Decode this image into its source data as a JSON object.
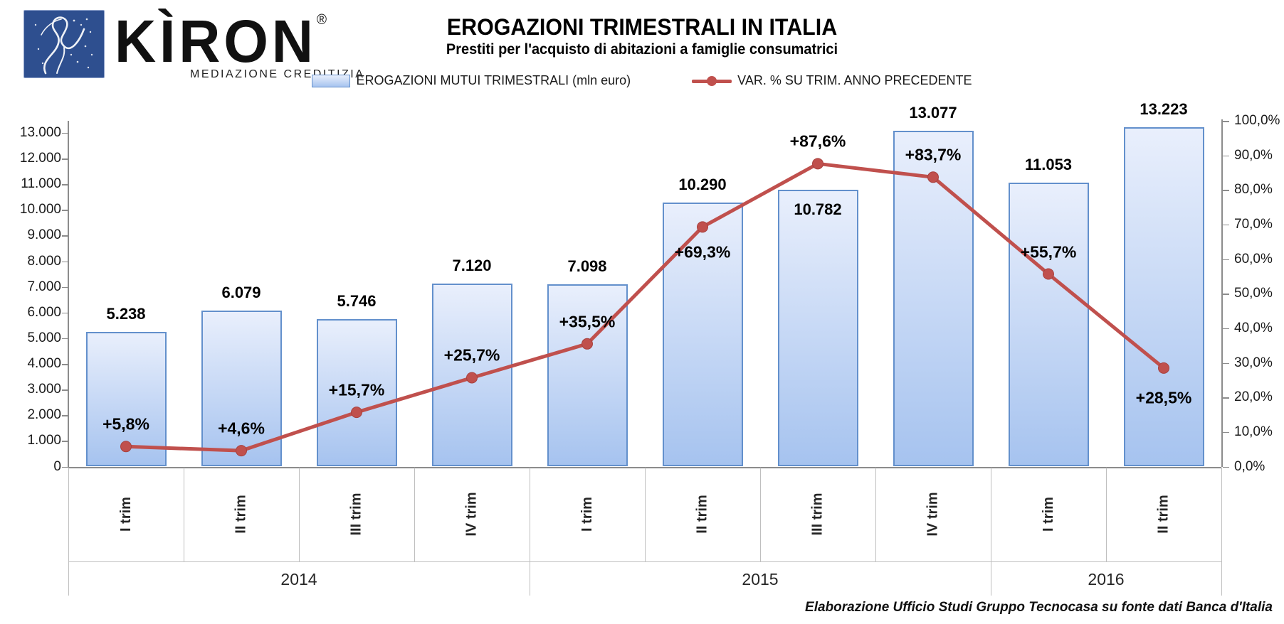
{
  "logo": {
    "name": "KÌRON",
    "registered": "®",
    "tagline": "MEDIAZIONE CREDITIZIA"
  },
  "header": {
    "title": "EROGAZIONI TRIMESTRALI IN ITALIA",
    "subtitle": "Prestiti per l'acquisto di abitazioni a famiglie consumatrici"
  },
  "legend": {
    "bars_label": "EROGAZIONI MUTUI TRIMESTRALI (mln euro)",
    "line_label": "VAR. % SU TRIM. ANNO PRECEDENTE"
  },
  "footer": {
    "credit": "Elaborazione Ufficio Studi Gruppo Tecnocasa su fonte dati Banca d'Italia"
  },
  "colors": {
    "bar_fill_top": "#e9effc",
    "bar_fill_bottom": "#a6c3ef",
    "bar_border": "#6390cc",
    "line": "#c0504d",
    "axis": "#8c8c8c",
    "separator": "#bfbfbf",
    "logo_blue": "#2e4f8f"
  },
  "chart_data": {
    "type": "combo-bar-line",
    "title": "EROGAZIONI TRIMESTRALI IN ITALIA",
    "subtitle": "Prestiti per l'acquisto di abitazioni a famiglie consumatrici",
    "legend_position": "top",
    "grid": false,
    "categories": [
      "I trim",
      "II trim",
      "III trim",
      "IV trim",
      "I trim",
      "II trim",
      "III trim",
      "IV trim",
      "I trim",
      "II trim"
    ],
    "year_groups": [
      {
        "label": "2014",
        "span": 4
      },
      {
        "label": "2015",
        "span": 4
      },
      {
        "label": "2016",
        "span": 2
      }
    ],
    "series": [
      {
        "name": "EROGAZIONI MUTUI TRIMESTRALI (mln euro)",
        "type": "bar",
        "values": [
          5238,
          6079,
          5746,
          7120,
          7098,
          10290,
          10782,
          13077,
          11053,
          13223
        ],
        "labels": [
          "5.238",
          "6.079",
          "5.746",
          "7.120",
          "7.098",
          "10.290",
          "10.782",
          "13.077",
          "11.053",
          "13.223"
        ],
        "label_pos": [
          "above",
          "above",
          "above",
          "above",
          "above",
          "above",
          "inside",
          "above",
          "above",
          "above"
        ]
      },
      {
        "name": "VAR. % SU TRIM. ANNO PRECEDENTE",
        "type": "line",
        "values": [
          5.8,
          4.6,
          15.7,
          25.7,
          35.5,
          69.3,
          87.6,
          83.7,
          55.7,
          28.5
        ],
        "labels": [
          "+5,8%",
          "+4,6%",
          "+15,7%",
          "+25,7%",
          "+35,5%",
          "+69,3%",
          "+87,6%",
          "+83,7%",
          "+55,7%",
          "+28,5%"
        ],
        "label_pos": [
          "above",
          "above",
          "above",
          "above",
          "above",
          "below",
          "above",
          "above",
          "above",
          "below"
        ]
      }
    ],
    "left_axis": {
      "min": 0,
      "max": 13000,
      "step": 1000,
      "labels": [
        "0",
        "1.000",
        "2.000",
        "3.000",
        "4.000",
        "5.000",
        "6.000",
        "7.000",
        "8.000",
        "9.000",
        "10.000",
        "11.000",
        "12.000",
        "13.000"
      ]
    },
    "right_axis": {
      "min": 0,
      "max": 100,
      "step": 10,
      "labels": [
        "0,0%",
        "10,0%",
        "20,0%",
        "30,0%",
        "40,0%",
        "50,0%",
        "60,0%",
        "70,0%",
        "80,0%",
        "90,0%",
        "100,0%"
      ]
    }
  }
}
